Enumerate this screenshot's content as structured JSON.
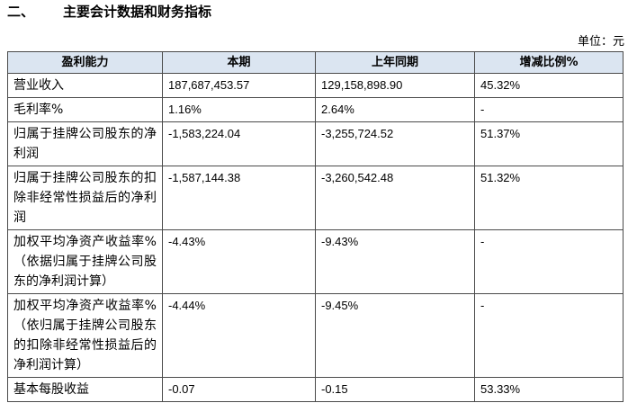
{
  "heading": {
    "number": "二、",
    "title": "主要会计数据和财务指标"
  },
  "unit": "单位：元",
  "table": {
    "header": [
      "盈利能力",
      "本期",
      "上年同期",
      "增减比例%"
    ],
    "rows": [
      [
        "营业收入",
        "187,687,453.57",
        "129,158,898.90",
        "45.32%"
      ],
      [
        "毛利率%",
        "1.16%",
        "2.64%",
        "-"
      ],
      [
        "归属于挂牌公司股东的净利润",
        "-1,583,224.04",
        "-3,255,724.52",
        "51.37%"
      ],
      [
        "归属于挂牌公司股东的扣除非经常性损益后的净利润",
        "-1,587,144.38",
        "-3,260,542.48",
        "51.32%"
      ],
      [
        "加权平均净资产收益率%（依据归属于挂牌公司股东的净利润计算）",
        "-4.43%",
        "-9.43%",
        "-"
      ],
      [
        "加权平均净资产收益率%（依归属于挂牌公司股东的扣除非经常性损益后的净利润计算）",
        "-4.44%",
        "-9.45%",
        "-"
      ],
      [
        "基本每股收益",
        "-0.07",
        "-0.15",
        "53.33%"
      ]
    ]
  }
}
